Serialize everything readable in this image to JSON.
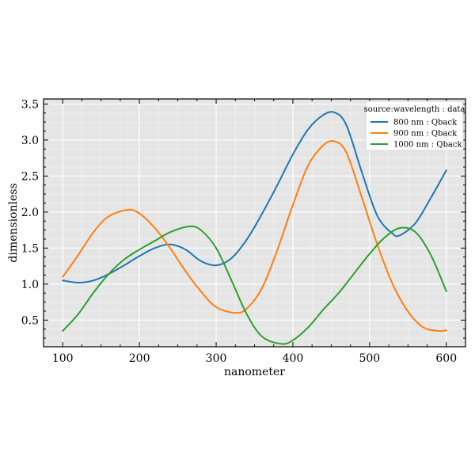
{
  "chart_data": {
    "type": "line",
    "xlabel": "nanometer",
    "ylabel": "dimensionless",
    "xlim": [
      75,
      625
    ],
    "ylim": [
      0.13,
      3.57
    ],
    "xticks": [
      100,
      200,
      300,
      400,
      500,
      600
    ],
    "yticks": [
      0.5,
      1.0,
      1.5,
      2.0,
      2.5,
      3.0,
      3.5
    ],
    "xtick_labels": [
      "100",
      "200",
      "300",
      "400",
      "500",
      "600"
    ],
    "ytick_labels": [
      "0.5",
      "1.0",
      "1.5",
      "2.0",
      "2.5",
      "3.0",
      "3.5"
    ],
    "grid": true,
    "background": "#e5e5e5",
    "legend": {
      "title": "source:wavelength : data",
      "position": "top-right"
    },
    "series": [
      {
        "name": "800 nm : Qback",
        "color": "#1f77b4",
        "x": [
          100,
          120,
          140,
          160,
          180,
          200,
          220,
          240,
          260,
          280,
          300,
          320,
          340,
          360,
          380,
          400,
          420,
          440,
          455,
          470,
          490,
          510,
          530,
          540,
          560,
          580,
          600
        ],
        "y": [
          1.05,
          1.02,
          1.05,
          1.14,
          1.26,
          1.39,
          1.5,
          1.55,
          1.48,
          1.32,
          1.26,
          1.36,
          1.62,
          1.98,
          2.38,
          2.8,
          3.15,
          3.35,
          3.38,
          3.2,
          2.55,
          1.95,
          1.7,
          1.68,
          1.85,
          2.2,
          2.58
        ]
      },
      {
        "name": "900 nm : Qback",
        "color": "#ff7f0e",
        "x": [
          100,
          120,
          140,
          160,
          185,
          200,
          220,
          240,
          260,
          280,
          300,
          325,
          340,
          360,
          380,
          400,
          420,
          440,
          455,
          470,
          490,
          510,
          530,
          550,
          570,
          590,
          600
        ],
        "y": [
          1.1,
          1.4,
          1.72,
          1.94,
          2.03,
          1.98,
          1.78,
          1.5,
          1.18,
          0.9,
          0.68,
          0.6,
          0.66,
          0.95,
          1.48,
          2.1,
          2.65,
          2.93,
          2.98,
          2.82,
          2.2,
          1.55,
          1.0,
          0.62,
          0.4,
          0.35,
          0.36
        ]
      },
      {
        "name": "1000 nm : Qback",
        "color": "#2ca02c",
        "x": [
          100,
          120,
          140,
          160,
          180,
          200,
          220,
          240,
          265,
          280,
          300,
          320,
          340,
          360,
          385,
          400,
          420,
          440,
          460,
          480,
          500,
          520,
          540,
          560,
          580,
          600
        ],
        "y": [
          0.35,
          0.58,
          0.88,
          1.14,
          1.34,
          1.48,
          1.6,
          1.72,
          1.8,
          1.75,
          1.5,
          1.05,
          0.58,
          0.27,
          0.17,
          0.22,
          0.4,
          0.65,
          0.88,
          1.15,
          1.42,
          1.65,
          1.78,
          1.72,
          1.4,
          0.9
        ]
      }
    ]
  }
}
